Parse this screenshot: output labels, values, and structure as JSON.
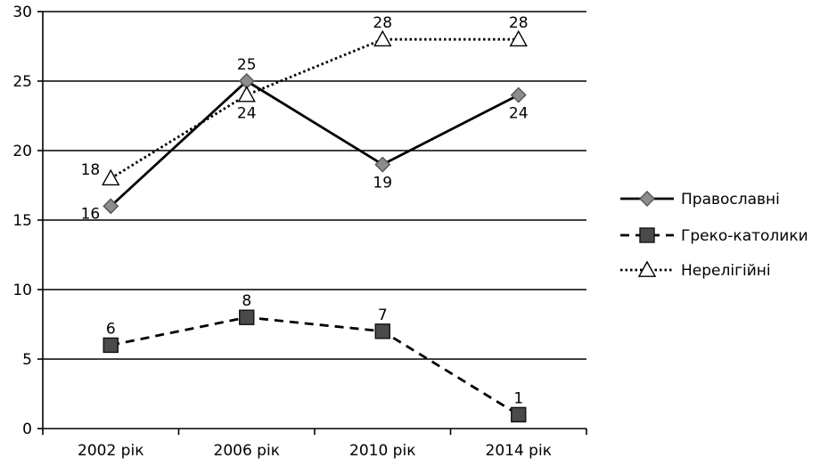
{
  "chart_data": {
    "type": "line",
    "categories": [
      "2002 рік",
      "2006 рік",
      "2010 рік",
      "2014 рік"
    ],
    "ylim": [
      0,
      30
    ],
    "yticks": [
      "0",
      "5",
      "10",
      "15",
      "20",
      "25",
      "30"
    ],
    "grid": "horizontal",
    "legend_position": "right",
    "series": [
      {
        "name": "Православні",
        "values": [
          16,
          25,
          19,
          24
        ],
        "labels": [
          "16",
          "25",
          "19",
          "24"
        ],
        "line": "solid",
        "marker": "diamond",
        "marker_color": "#8c8c8c"
      },
      {
        "name": "Греко-католики",
        "values": [
          6,
          8,
          7,
          1
        ],
        "labels": [
          "6",
          "8",
          "7",
          "1"
        ],
        "line": "dashed",
        "marker": "square",
        "marker_color": "#4a4a4a"
      },
      {
        "name": "Нерелігійні",
        "values": [
          18,
          24,
          28,
          28
        ],
        "labels": [
          "18",
          "24",
          "28",
          "28"
        ],
        "line": "dotted",
        "marker": "triangle",
        "marker_color": "#ffffff"
      }
    ]
  }
}
